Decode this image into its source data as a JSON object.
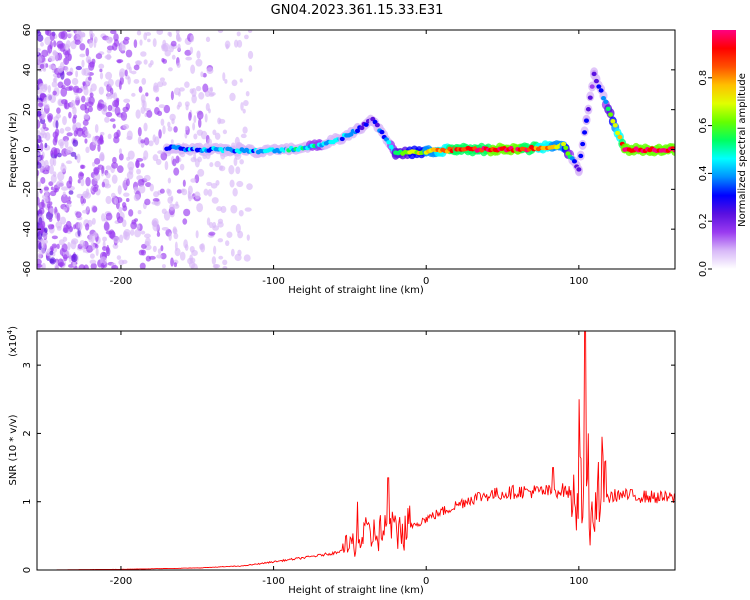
{
  "title": "GN04.2023.361.15.33.E31",
  "chart_data": [
    {
      "type": "heatmap",
      "title": "GN04.2023.361.15.33.E31",
      "xlabel": "Height of straight line (km)",
      "ylabel": "Frequency (Hz)",
      "xlim": [
        -255,
        163
      ],
      "ylim": [
        -60,
        60
      ],
      "xticks": [
        -200,
        -100,
        0,
        100
      ],
      "yticks": [
        60,
        40,
        20,
        0,
        -20,
        -40,
        -60
      ],
      "colorbar": {
        "label": "Normalized spectral amplitude",
        "range": [
          0.0,
          1.0
        ],
        "ticks": [
          "0.0",
          "0.2",
          "0.4",
          "0.6",
          "0.8"
        ],
        "colormap": [
          "#ffffff",
          "#d8b8f8",
          "#9a3bf0",
          "#5a10e0",
          "#0000ff",
          "#0090ff",
          "#00ffff",
          "#00ff60",
          "#66ff00",
          "#e0ff00",
          "#ffc000",
          "#ff5000",
          "#ff0000",
          "#ff0080"
        ]
      },
      "signal_track": [
        {
          "x": -170,
          "f": 1,
          "amp": 0.32
        },
        {
          "x": -150,
          "f": 0,
          "amp": 0.38
        },
        {
          "x": -130,
          "f": 0,
          "amp": 0.42
        },
        {
          "x": -110,
          "f": -1,
          "amp": 0.4
        },
        {
          "x": -90,
          "f": 0,
          "amp": 0.44
        },
        {
          "x": -70,
          "f": 2,
          "amp": 0.48
        },
        {
          "x": -55,
          "f": 6,
          "amp": 0.4
        },
        {
          "x": -45,
          "f": 10,
          "amp": 0.3
        },
        {
          "x": -35,
          "f": 15,
          "amp": 0.22
        },
        {
          "x": -20,
          "f": -2,
          "amp": 0.55
        },
        {
          "x": 0,
          "f": -1,
          "amp": 0.7
        },
        {
          "x": 20,
          "f": 0,
          "amp": 0.9
        },
        {
          "x": 60,
          "f": 0,
          "amp": 0.95
        },
        {
          "x": 90,
          "f": 2,
          "amp": 0.7
        },
        {
          "x": 100,
          "f": -10,
          "amp": 0.25
        },
        {
          "x": 105,
          "f": 15,
          "amp": 0.3
        },
        {
          "x": 110,
          "f": 38,
          "amp": 0.2
        },
        {
          "x": 130,
          "f": 0,
          "amp": 0.95
        },
        {
          "x": 163,
          "f": 0,
          "amp": 0.95
        }
      ],
      "noise_region": [
        -255,
        -115
      ]
    },
    {
      "type": "line",
      "xlabel": "Height of straight line (km)",
      "ylabel": "SNR (10 * v/v)",
      "yscale_label": "(x10",
      "yscale_exp": "4",
      "xlim": [
        -255,
        163
      ],
      "ylim": [
        0,
        3.5
      ],
      "xticks": [
        -200,
        -100,
        0,
        100
      ],
      "yticks": [
        0,
        1,
        2,
        3
      ],
      "color": "#ff0000",
      "series": [
        {
          "x": [
            -255,
            -200,
            -150,
            -120,
            -100,
            -80,
            -60,
            -50,
            -40,
            -30,
            -25,
            -20,
            -10,
            0,
            10,
            20,
            30,
            40,
            50,
            60,
            70,
            80,
            90,
            95,
            100,
            102,
            104,
            106,
            108,
            110,
            112,
            114,
            118,
            125,
            140,
            163
          ],
          "values": [
            0.0,
            0.01,
            0.03,
            0.06,
            0.12,
            0.18,
            0.25,
            0.35,
            0.5,
            0.55,
            0.6,
            0.55,
            0.65,
            0.75,
            0.85,
            0.95,
            1.05,
            1.1,
            1.12,
            1.15,
            1.15,
            1.15,
            1.17,
            1.12,
            1.08,
            1.1,
            0.95,
            0.85,
            0.7,
            0.9,
            1.2,
            1.15,
            1.05,
            1.1,
            1.08,
            1.05
          ]
        }
      ],
      "spikes": [
        {
          "x": -25,
          "value": 1.35
        },
        {
          "x": -45,
          "value": 1.0
        },
        {
          "x": 83,
          "value": 1.5
        },
        {
          "x": 100,
          "value": 2.5
        },
        {
          "x": 104,
          "value": 3.5
        },
        {
          "x": 106,
          "value": 2.0
        },
        {
          "x": 115,
          "value": 1.95
        }
      ]
    }
  ]
}
